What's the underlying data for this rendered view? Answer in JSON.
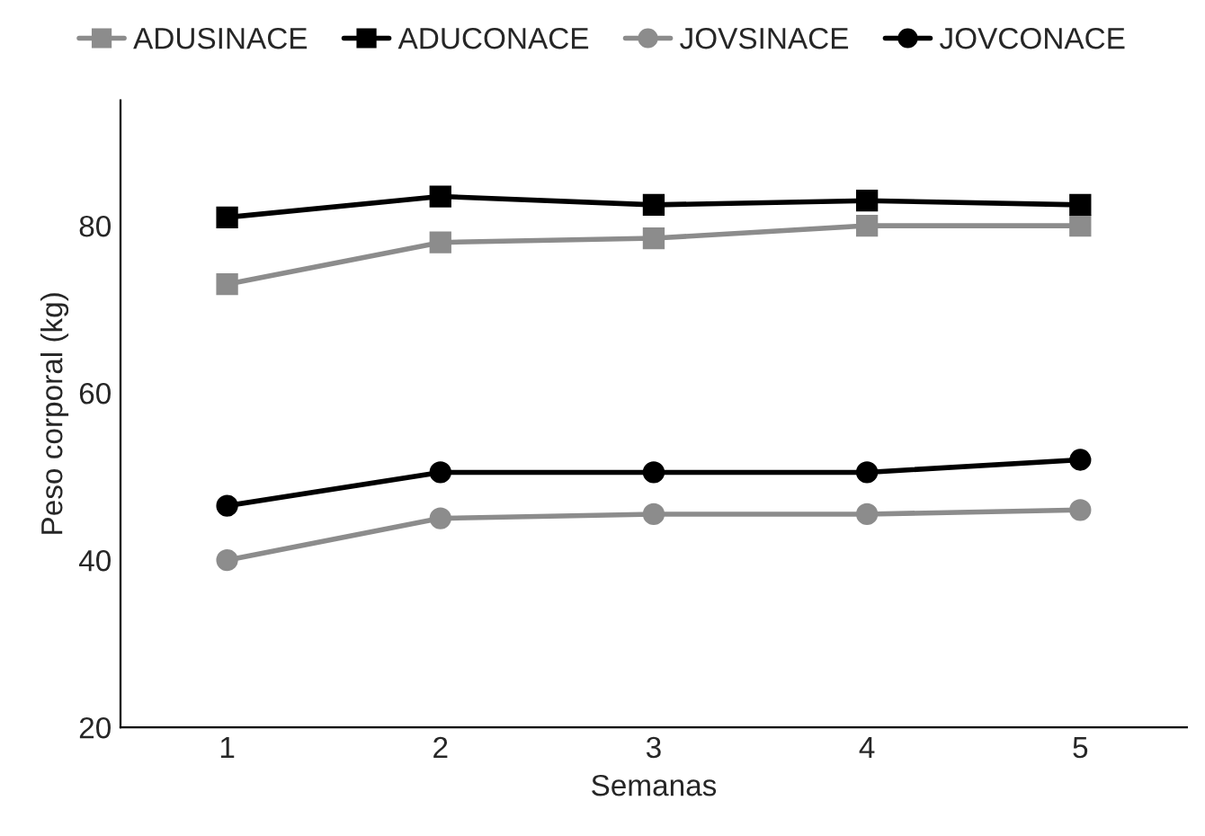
{
  "chart_data": {
    "type": "line",
    "xlabel": "Semanas",
    "ylabel": "Peso corporal (kg)",
    "categories": [
      "1",
      "2",
      "3",
      "4",
      "5"
    ],
    "series": [
      {
        "name": "ADUSINACE",
        "color": "#8c8c8c",
        "marker": "square",
        "values": [
          73,
          78,
          78.5,
          80,
          80
        ]
      },
      {
        "name": "ADUCONACE",
        "color": "#000000",
        "marker": "square",
        "values": [
          81,
          83.5,
          82.5,
          83,
          82.5
        ]
      },
      {
        "name": "JOVSINACE",
        "color": "#8c8c8c",
        "marker": "circle",
        "values": [
          40,
          45,
          45.5,
          45.5,
          46
        ]
      },
      {
        "name": "JOVCONACE",
        "color": "#000000",
        "marker": "circle",
        "values": [
          46.5,
          50.5,
          50.5,
          50.5,
          52
        ]
      }
    ],
    "ylim": [
      20,
      95
    ],
    "yticks": [
      20,
      40,
      60,
      80
    ],
    "grid": false,
    "legend": "top",
    "line_style": "solid"
  }
}
